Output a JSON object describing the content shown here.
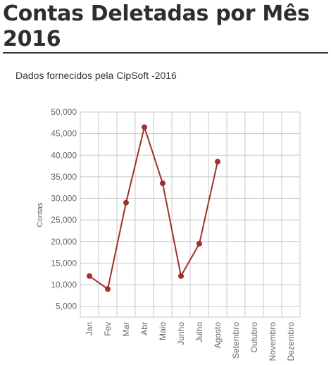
{
  "page": {
    "title": "Contas Deletadas por Mês 2016",
    "subtitle": "Dados fornecidos pela CipSoft -2016"
  },
  "chart_data": {
    "type": "line",
    "title": "Contas Deletadas por Mês 2016",
    "subtitle": "Dados fornecidos pela CipSoft -2016",
    "xlabel": "",
    "ylabel": "Contas",
    "categories": [
      "Jan",
      "Fev",
      "Mar",
      "Abr",
      "Maio",
      "Junho",
      "Julho",
      "Agosto",
      "Setembro",
      "Outubro",
      "Novembro",
      "Dezembro"
    ],
    "series": [
      {
        "values": [
          12000,
          9000,
          29000,
          46500,
          33500,
          12000,
          19500,
          38500,
          null,
          null,
          null,
          null
        ]
      }
    ],
    "ylim": [
      2500,
      50000
    ],
    "yticks": [
      5000,
      10000,
      15000,
      20000,
      25000,
      30000,
      35000,
      40000,
      45000,
      50000
    ],
    "ytick_labels": [
      "5,000",
      "10,000",
      "15,000",
      "20,000",
      "25,000",
      "30,000",
      "35,000",
      "40,000",
      "45,000",
      "50,000"
    ],
    "grid": true,
    "colors": {
      "line": "#a0302a",
      "grid": "#c8c8c8"
    }
  }
}
